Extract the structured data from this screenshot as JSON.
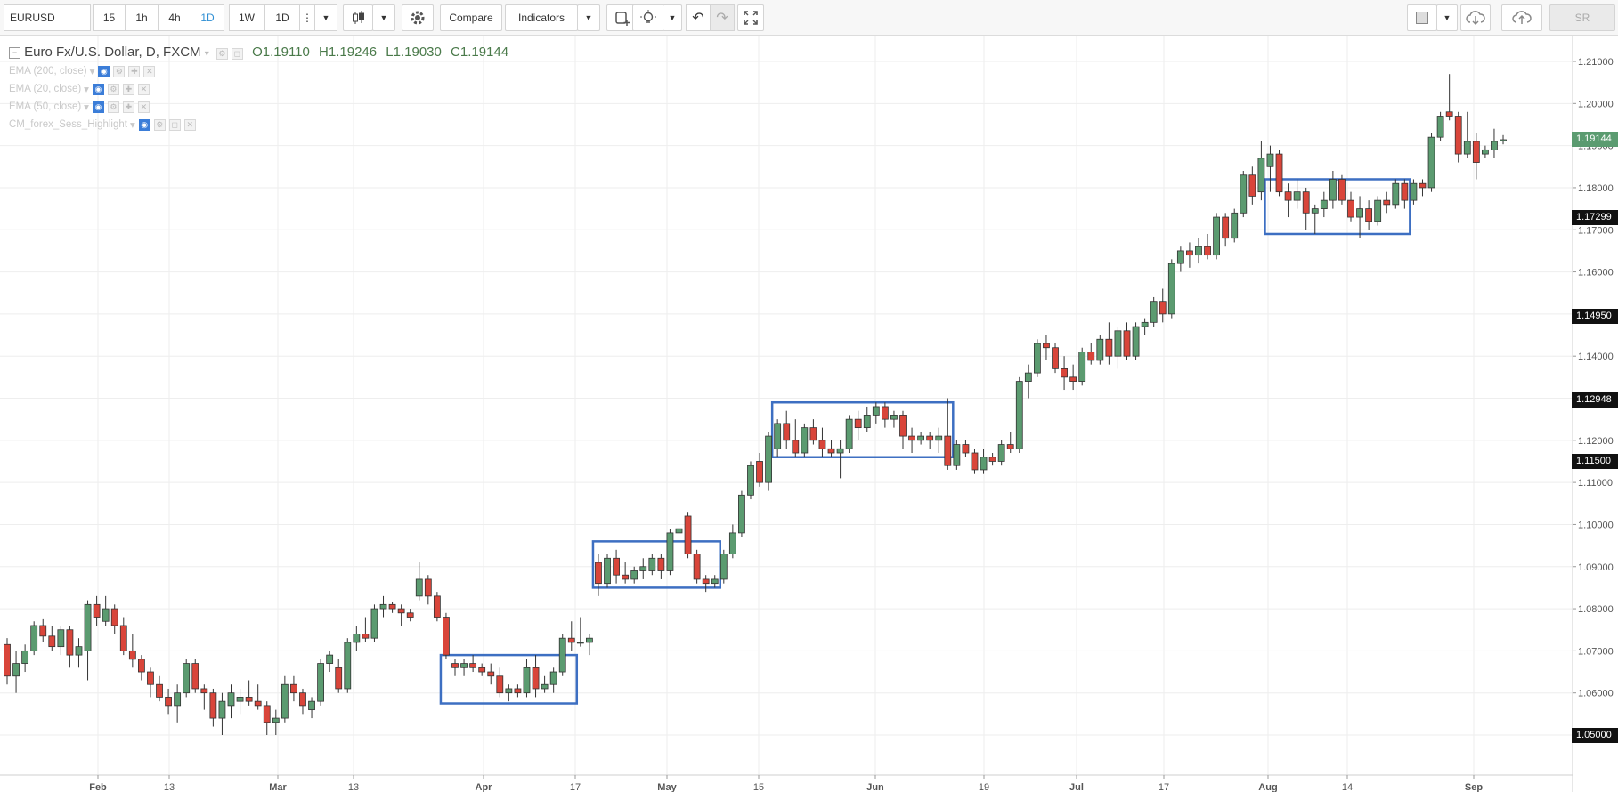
{
  "toolbar": {
    "symbol": "EURUSD",
    "intervals": [
      "15",
      "1h",
      "4h",
      "1D",
      "1W",
      "1D"
    ],
    "active_interval_index": 3,
    "compare_label": "Compare",
    "indicators_label": "Indicators",
    "sr_label": "SR"
  },
  "legend": {
    "title": "Euro Fx/U.S. Dollar, D, FXCM",
    "open": "O1.19110",
    "high": "H1.19246",
    "low": "L1.19030",
    "close": "C1.19144"
  },
  "indicators": [
    {
      "label": "EMA (200, close)"
    },
    {
      "label": "EMA (20, close)"
    },
    {
      "label": "EMA (50, close)"
    },
    {
      "label": "CM_forex_Sess_Highlight"
    }
  ],
  "colors": {
    "up": "#5b9b70",
    "down": "#d9453a",
    "box": "#3d6fc2",
    "grid": "#eeeeee",
    "last_price_bg": "#5b9b70",
    "marker_bg": "#111111"
  },
  "price_axis": {
    "labels": [
      "1.21000",
      "1.20000",
      "1.19000",
      "1.18000",
      "1.17000",
      "1.16000",
      "1.15000",
      "1.14000",
      "1.13000",
      "1.12000",
      "1.11000",
      "1.10000",
      "1.09000",
      "1.08000",
      "1.07000",
      "1.06000",
      "1.05000"
    ],
    "last_price": "1.19144",
    "markers": [
      "1.17299",
      "1.14950",
      "1.12948",
      "1.11500",
      "1.05000"
    ]
  },
  "time_axis": {
    "labels": [
      {
        "text": "Feb",
        "major": true
      },
      {
        "text": "13",
        "major": false
      },
      {
        "text": "Mar",
        "major": true
      },
      {
        "text": "13",
        "major": false
      },
      {
        "text": "Apr",
        "major": true
      },
      {
        "text": "17",
        "major": false
      },
      {
        "text": "May",
        "major": true
      },
      {
        "text": "15",
        "major": false
      },
      {
        "text": "Jun",
        "major": true
      },
      {
        "text": "19",
        "major": false
      },
      {
        "text": "Jul",
        "major": true
      },
      {
        "text": "17",
        "major": false
      },
      {
        "text": "Aug",
        "major": true
      },
      {
        "text": "14",
        "major": false
      },
      {
        "text": "Sep",
        "major": true
      }
    ]
  },
  "chart_data": {
    "type": "candlestick",
    "ylim": [
      1.045,
      1.215
    ],
    "grid": true,
    "candles": [
      [
        1.0715,
        1.073,
        1.062,
        1.064
      ],
      [
        1.064,
        1.07,
        1.06,
        1.067
      ],
      [
        1.067,
        1.0715,
        1.065,
        1.07
      ],
      [
        1.07,
        1.077,
        1.069,
        1.076
      ],
      [
        1.076,
        1.0775,
        1.072,
        1.0735
      ],
      [
        1.0735,
        1.076,
        1.07,
        1.071
      ],
      [
        1.071,
        1.076,
        1.069,
        1.075
      ],
      [
        1.075,
        1.076,
        1.066,
        1.069
      ],
      [
        1.069,
        1.073,
        1.066,
        1.071
      ],
      [
        1.07,
        1.082,
        1.063,
        1.081
      ],
      [
        1.081,
        1.083,
        1.076,
        1.078
      ],
      [
        1.077,
        1.083,
        1.076,
        1.08
      ],
      [
        1.08,
        1.081,
        1.074,
        1.076
      ],
      [
        1.076,
        1.078,
        1.069,
        1.07
      ],
      [
        1.07,
        1.074,
        1.066,
        1.068
      ],
      [
        1.068,
        1.069,
        1.063,
        1.065
      ],
      [
        1.065,
        1.066,
        1.059,
        1.062
      ],
      [
        1.062,
        1.064,
        1.058,
        1.059
      ],
      [
        1.059,
        1.061,
        1.055,
        1.057
      ],
      [
        1.057,
        1.062,
        1.053,
        1.06
      ],
      [
        1.06,
        1.068,
        1.059,
        1.067
      ],
      [
        1.067,
        1.068,
        1.06,
        1.061
      ],
      [
        1.061,
        1.062,
        1.056,
        1.06
      ],
      [
        1.06,
        1.061,
        1.052,
        1.054
      ],
      [
        1.054,
        1.06,
        1.05,
        1.058
      ],
      [
        1.057,
        1.062,
        1.054,
        1.06
      ],
      [
        1.058,
        1.061,
        1.055,
        1.059
      ],
      [
        1.059,
        1.063,
        1.057,
        1.058
      ],
      [
        1.058,
        1.062,
        1.056,
        1.057
      ],
      [
        1.057,
        1.058,
        1.05,
        1.053
      ],
      [
        1.053,
        1.056,
        1.05,
        1.054
      ],
      [
        1.054,
        1.064,
        1.053,
        1.062
      ],
      [
        1.062,
        1.064,
        1.058,
        1.06
      ],
      [
        1.06,
        1.061,
        1.055,
        1.057
      ],
      [
        1.056,
        1.059,
        1.054,
        1.058
      ],
      [
        1.058,
        1.068,
        1.057,
        1.067
      ],
      [
        1.067,
        1.07,
        1.065,
        1.069
      ],
      [
        1.066,
        1.068,
        1.06,
        1.061
      ],
      [
        1.061,
        1.073,
        1.06,
        1.072
      ],
      [
        1.072,
        1.076,
        1.07,
        1.074
      ],
      [
        1.074,
        1.078,
        1.072,
        1.073
      ],
      [
        1.073,
        1.081,
        1.072,
        1.08
      ],
      [
        1.08,
        1.083,
        1.078,
        1.081
      ],
      [
        1.081,
        1.0815,
        1.079,
        1.08
      ],
      [
        1.08,
        1.081,
        1.076,
        1.079
      ],
      [
        1.079,
        1.08,
        1.077,
        1.078
      ],
      [
        1.083,
        1.091,
        1.082,
        1.087
      ],
      [
        1.087,
        1.088,
        1.081,
        1.083
      ],
      [
        1.083,
        1.084,
        1.077,
        1.078
      ],
      [
        1.078,
        1.079,
        1.068,
        1.069
      ],
      [
        1.067,
        1.068,
        1.064,
        1.066
      ],
      [
        1.066,
        1.068,
        1.064,
        1.067
      ],
      [
        1.067,
        1.069,
        1.065,
        1.066
      ],
      [
        1.066,
        1.067,
        1.064,
        1.065
      ],
      [
        1.065,
        1.067,
        1.062,
        1.064
      ],
      [
        1.064,
        1.066,
        1.059,
        1.06
      ],
      [
        1.06,
        1.062,
        1.058,
        1.061
      ],
      [
        1.061,
        1.062,
        1.059,
        1.06
      ],
      [
        1.06,
        1.068,
        1.059,
        1.066
      ],
      [
        1.066,
        1.069,
        1.059,
        1.061
      ],
      [
        1.061,
        1.064,
        1.06,
        1.062
      ],
      [
        1.062,
        1.066,
        1.06,
        1.065
      ],
      [
        1.065,
        1.074,
        1.064,
        1.073
      ],
      [
        1.073,
        1.077,
        1.07,
        1.072
      ],
      [
        1.072,
        1.078,
        1.071,
        1.072
      ],
      [
        1.072,
        1.074,
        1.069,
        1.073
      ],
      [
        1.091,
        1.093,
        1.083,
        1.086
      ],
      [
        1.086,
        1.093,
        1.085,
        1.092
      ],
      [
        1.092,
        1.094,
        1.086,
        1.088
      ],
      [
        1.088,
        1.091,
        1.086,
        1.087
      ],
      [
        1.087,
        1.09,
        1.086,
        1.089
      ],
      [
        1.089,
        1.092,
        1.087,
        1.09
      ],
      [
        1.089,
        1.093,
        1.088,
        1.092
      ],
      [
        1.092,
        1.093,
        1.087,
        1.089
      ],
      [
        1.089,
        1.099,
        1.088,
        1.098
      ],
      [
        1.098,
        1.1,
        1.094,
        1.099
      ],
      [
        1.102,
        1.103,
        1.092,
        1.093
      ],
      [
        1.093,
        1.094,
        1.086,
        1.087
      ],
      [
        1.087,
        1.088,
        1.084,
        1.086
      ],
      [
        1.086,
        1.088,
        1.085,
        1.087
      ],
      [
        1.087,
        1.094,
        1.086,
        1.093
      ],
      [
        1.093,
        1.1,
        1.092,
        1.098
      ],
      [
        1.098,
        1.108,
        1.097,
        1.107
      ],
      [
        1.107,
        1.115,
        1.106,
        1.114
      ],
      [
        1.115,
        1.117,
        1.109,
        1.11
      ],
      [
        1.11,
        1.122,
        1.108,
        1.121
      ],
      [
        1.118,
        1.125,
        1.116,
        1.124
      ],
      [
        1.124,
        1.127,
        1.118,
        1.12
      ],
      [
        1.12,
        1.125,
        1.116,
        1.117
      ],
      [
        1.117,
        1.124,
        1.116,
        1.123
      ],
      [
        1.123,
        1.125,
        1.119,
        1.12
      ],
      [
        1.12,
        1.123,
        1.116,
        1.118
      ],
      [
        1.118,
        1.12,
        1.116,
        1.117
      ],
      [
        1.117,
        1.12,
        1.111,
        1.118
      ],
      [
        1.118,
        1.126,
        1.117,
        1.125
      ],
      [
        1.125,
        1.127,
        1.12,
        1.123
      ],
      [
        1.123,
        1.128,
        1.122,
        1.126
      ],
      [
        1.126,
        1.129,
        1.124,
        1.128
      ],
      [
        1.128,
        1.129,
        1.123,
        1.125
      ],
      [
        1.125,
        1.127,
        1.123,
        1.126
      ],
      [
        1.126,
        1.127,
        1.118,
        1.121
      ],
      [
        1.121,
        1.123,
        1.117,
        1.12
      ],
      [
        1.12,
        1.122,
        1.119,
        1.121
      ],
      [
        1.121,
        1.122,
        1.118,
        1.12
      ],
      [
        1.12,
        1.123,
        1.117,
        1.121
      ],
      [
        1.121,
        1.13,
        1.113,
        1.114
      ],
      [
        1.114,
        1.12,
        1.113,
        1.119
      ],
      [
        1.119,
        1.12,
        1.116,
        1.117
      ],
      [
        1.117,
        1.118,
        1.112,
        1.113
      ],
      [
        1.113,
        1.118,
        1.112,
        1.116
      ],
      [
        1.116,
        1.117,
        1.114,
        1.115
      ],
      [
        1.115,
        1.12,
        1.114,
        1.119
      ],
      [
        1.119,
        1.122,
        1.117,
        1.118
      ],
      [
        1.118,
        1.135,
        1.117,
        1.134
      ],
      [
        1.134,
        1.138,
        1.13,
        1.136
      ],
      [
        1.136,
        1.144,
        1.135,
        1.143
      ],
      [
        1.143,
        1.145,
        1.139,
        1.142
      ],
      [
        1.142,
        1.143,
        1.136,
        1.137
      ],
      [
        1.137,
        1.14,
        1.132,
        1.135
      ],
      [
        1.135,
        1.138,
        1.132,
        1.134
      ],
      [
        1.134,
        1.142,
        1.133,
        1.141
      ],
      [
        1.141,
        1.143,
        1.138,
        1.139
      ],
      [
        1.139,
        1.145,
        1.138,
        1.144
      ],
      [
        1.144,
        1.148,
        1.138,
        1.14
      ],
      [
        1.14,
        1.147,
        1.137,
        1.146
      ],
      [
        1.146,
        1.148,
        1.139,
        1.14
      ],
      [
        1.14,
        1.148,
        1.139,
        1.147
      ],
      [
        1.147,
        1.149,
        1.145,
        1.148
      ],
      [
        1.148,
        1.154,
        1.147,
        1.153
      ],
      [
        1.153,
        1.156,
        1.148,
        1.15
      ],
      [
        1.15,
        1.163,
        1.149,
        1.162
      ],
      [
        1.162,
        1.166,
        1.16,
        1.165
      ],
      [
        1.165,
        1.167,
        1.161,
        1.164
      ],
      [
        1.164,
        1.168,
        1.162,
        1.166
      ],
      [
        1.166,
        1.169,
        1.163,
        1.164
      ],
      [
        1.164,
        1.174,
        1.163,
        1.173
      ],
      [
        1.173,
        1.174,
        1.166,
        1.168
      ],
      [
        1.168,
        1.175,
        1.167,
        1.174
      ],
      [
        1.174,
        1.184,
        1.173,
        1.183
      ],
      [
        1.183,
        1.185,
        1.176,
        1.178
      ],
      [
        1.179,
        1.191,
        1.177,
        1.187
      ],
      [
        1.185,
        1.19,
        1.179,
        1.188
      ],
      [
        1.188,
        1.189,
        1.178,
        1.179
      ],
      [
        1.179,
        1.181,
        1.173,
        1.177
      ],
      [
        1.177,
        1.182,
        1.175,
        1.179
      ],
      [
        1.179,
        1.18,
        1.17,
        1.174
      ],
      [
        1.174,
        1.176,
        1.169,
        1.175
      ],
      [
        1.175,
        1.179,
        1.173,
        1.177
      ],
      [
        1.177,
        1.184,
        1.175,
        1.182
      ],
      [
        1.182,
        1.183,
        1.176,
        1.177
      ],
      [
        1.177,
        1.179,
        1.172,
        1.173
      ],
      [
        1.173,
        1.178,
        1.168,
        1.175
      ],
      [
        1.175,
        1.177,
        1.17,
        1.172
      ],
      [
        1.172,
        1.178,
        1.171,
        1.177
      ],
      [
        1.177,
        1.179,
        1.174,
        1.176
      ],
      [
        1.176,
        1.182,
        1.175,
        1.181
      ],
      [
        1.181,
        1.182,
        1.175,
        1.177
      ],
      [
        1.177,
        1.182,
        1.176,
        1.181
      ],
      [
        1.181,
        1.182,
        1.178,
        1.18
      ],
      [
        1.18,
        1.193,
        1.179,
        1.192
      ],
      [
        1.192,
        1.198,
        1.191,
        1.197
      ],
      [
        1.198,
        1.207,
        1.196,
        1.197
      ],
      [
        1.197,
        1.198,
        1.186,
        1.188
      ],
      [
        1.188,
        1.198,
        1.187,
        1.191
      ],
      [
        1.191,
        1.193,
        1.182,
        1.186
      ],
      [
        1.188,
        1.19,
        1.187,
        1.189
      ],
      [
        1.189,
        1.194,
        1.187,
        1.191
      ],
      [
        1.1911,
        1.1925,
        1.1903,
        1.1914
      ]
    ],
    "boxes": [
      {
        "from": 49,
        "to": 63,
        "top": 1.069,
        "bottom": 1.0575
      },
      {
        "from": 66,
        "to": 79,
        "top": 1.096,
        "bottom": 1.085
      },
      {
        "from": 86,
        "to": 105,
        "top": 1.129,
        "bottom": 1.116
      },
      {
        "from": 141,
        "to": 156,
        "top": 1.182,
        "bottom": 1.169
      }
    ]
  }
}
